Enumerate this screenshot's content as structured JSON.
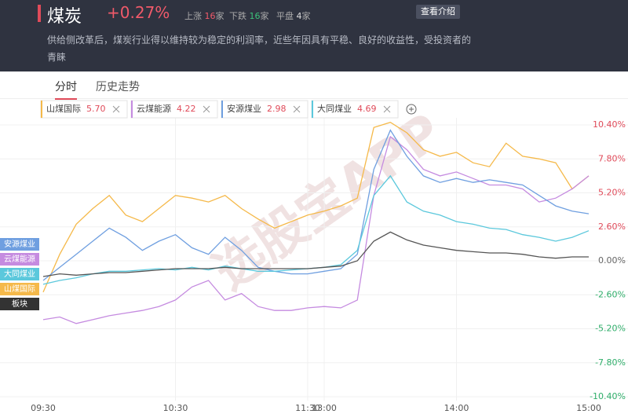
{
  "header": {
    "title": "煤炭",
    "change": "+0.27%",
    "up_label": "上涨",
    "up_count": "16",
    "down_label": "下跌",
    "down_count": "16",
    "flat_label": "平盘",
    "flat_count": "4",
    "unit": "家",
    "button": "查看介绍",
    "description": "供给侧改革后，煤炭行业得以维持较为稳定的利润率，近些年因具有平稳、良好的收益性，受投资者的青睐"
  },
  "tabs": [
    "分时",
    "历史走势"
  ],
  "watermark": "选股宝APP",
  "chart_data": {
    "type": "line",
    "categories": [
      "09:30",
      null,
      null,
      null,
      null,
      null,
      null,
      null,
      "10:30",
      null,
      null,
      null,
      null,
      null,
      null,
      null,
      "11:30",
      "13:00",
      null,
      null,
      null,
      null,
      null,
      null,
      null,
      "14:00",
      null,
      null,
      null,
      null,
      null,
      null,
      null,
      "15:00"
    ],
    "ylim": [
      -10.4,
      10.4
    ],
    "yticks": [
      {
        "value": 10.4,
        "label": "10.40%"
      },
      {
        "value": 7.8,
        "label": "7.80%"
      },
      {
        "value": 5.2,
        "label": "5.20%"
      },
      {
        "value": 2.6,
        "label": "2.60%"
      },
      {
        "value": 0,
        "label": "0.00%"
      },
      {
        "value": -2.6,
        "label": "-2.60%"
      },
      {
        "value": -5.2,
        "label": "-5.20%"
      },
      {
        "value": -7.8,
        "label": "-7.80%"
      },
      {
        "value": -10.4,
        "label": "-10.40%"
      }
    ],
    "grid": true,
    "series": [
      {
        "name": "山煤国际",
        "price": "5.70",
        "color": "#f5b94a",
        "values": [
          -2.4,
          0.5,
          2.8,
          4.0,
          5.0,
          3.5,
          3.0,
          4.0,
          5.0,
          4.8,
          4.5,
          5.0,
          4.0,
          3.2,
          2.5,
          3.0,
          3.5,
          3.8,
          4.2,
          4.8,
          10.2,
          10.6,
          9.8,
          8.5,
          8.0,
          8.3,
          7.5,
          7.2,
          9.0,
          8.0,
          7.8,
          7.5,
          5.5,
          6.5
        ]
      },
      {
        "name": "云煤能源",
        "price": "4.22",
        "color": "#c58be0",
        "values": [
          -4.5,
          -4.3,
          -4.8,
          -4.5,
          -4.2,
          -4.0,
          -3.8,
          -3.5,
          -3.0,
          -2.0,
          -1.5,
          -3.0,
          -2.5,
          -3.5,
          -3.8,
          -3.8,
          -3.6,
          -3.5,
          -3.6,
          -3.0,
          5.0,
          9.5,
          8.5,
          7.0,
          6.5,
          6.8,
          6.3,
          5.8,
          5.8,
          5.5,
          4.5,
          4.8,
          5.5,
          6.5
        ]
      },
      {
        "name": "安源煤业",
        "price": "2.98",
        "color": "#6f9fe0",
        "values": [
          -1.5,
          -0.5,
          0.5,
          1.5,
          2.5,
          1.8,
          0.8,
          1.5,
          2.0,
          1.0,
          0.5,
          1.8,
          0.8,
          -0.5,
          -0.8,
          -1.0,
          -1.0,
          -0.8,
          -0.6,
          0.5,
          7.0,
          10.0,
          8.0,
          6.5,
          6.0,
          6.3,
          6.0,
          6.2,
          6.0,
          5.8,
          5.0,
          4.2,
          3.8,
          3.6
        ]
      },
      {
        "name": "大同煤业",
        "price": "4.69",
        "color": "#5bc8dc",
        "values": [
          -1.8,
          -1.5,
          -1.3,
          -1.0,
          -0.8,
          -0.8,
          -0.7,
          -0.6,
          -0.7,
          -0.5,
          -0.7,
          -0.4,
          -0.6,
          -0.8,
          -0.8,
          -0.7,
          -0.6,
          -0.5,
          -0.3,
          0.8,
          5.0,
          6.5,
          4.5,
          3.8,
          3.5,
          3.0,
          2.8,
          2.5,
          2.4,
          2.0,
          1.8,
          1.5,
          1.8,
          2.3
        ]
      },
      {
        "name": "板块",
        "color": "#555555",
        "values": [
          -1.2,
          -1.0,
          -1.1,
          -1.0,
          -0.9,
          -0.9,
          -0.8,
          -0.7,
          -0.6,
          -0.6,
          -0.6,
          -0.5,
          -0.6,
          -0.6,
          -0.6,
          -0.6,
          -0.6,
          -0.5,
          -0.4,
          0,
          1.5,
          2.2,
          1.6,
          1.2,
          1.0,
          0.8,
          0.7,
          0.6,
          0.6,
          0.5,
          0.3,
          0.2,
          0.3,
          0.3
        ]
      }
    ]
  }
}
